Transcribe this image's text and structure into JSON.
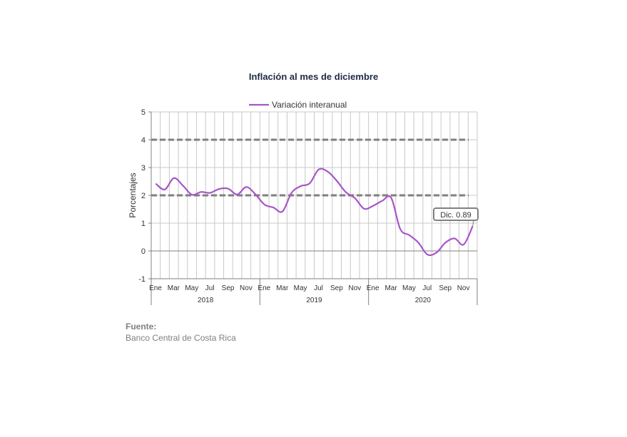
{
  "chart_data": {
    "type": "line",
    "title": "Inflación al mes de diciembre",
    "ylabel": "Porcentajes",
    "ylim": [
      -1,
      5
    ],
    "yticks": [
      "5",
      "4",
      "3",
      "2",
      "1",
      "0",
      "-1"
    ],
    "grid": true,
    "legend_position": "top-center",
    "x_month_labels": [
      "Ene",
      "Mar",
      "May",
      "Jul",
      "Sep",
      "Nov",
      "Ene",
      "Mar",
      "May",
      "Jul",
      "Sep",
      "Nov",
      "Ene",
      "Mar",
      "May",
      "Jul",
      "Sep",
      "Nov"
    ],
    "x_year_labels": [
      "2018",
      "2019",
      "2020"
    ],
    "series": [
      {
        "name": "Variación interanual",
        "color": "#a855c8",
        "values": [
          2.42,
          2.21,
          2.62,
          2.35,
          2.02,
          2.12,
          2.09,
          2.23,
          2.24,
          2.03,
          2.3,
          2.04,
          1.67,
          1.56,
          1.42,
          2.09,
          2.33,
          2.43,
          2.93,
          2.85,
          2.52,
          2.11,
          1.9,
          1.52,
          1.62,
          1.8,
          1.91,
          0.79,
          0.57,
          0.3,
          -0.13,
          -0.06,
          0.3,
          0.45,
          0.23,
          0.89
        ]
      }
    ],
    "reference_lines": [
      4,
      2
    ],
    "reference_line_color": "#7f7f7f",
    "annotation": "Dic. 0.89"
  },
  "source": {
    "label": "Fuente:",
    "text": "Banco Central de Costa Rica"
  }
}
